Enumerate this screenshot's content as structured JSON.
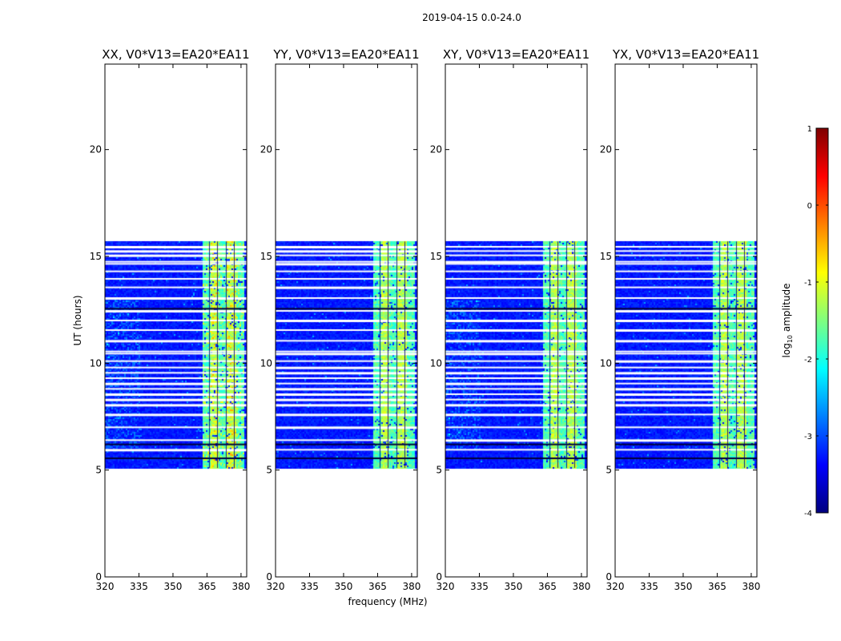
{
  "chart_data": {
    "type": "heatmap",
    "suptitle": "2019-04-15 0.0-24.0",
    "xlabel": "frequency (MHz)",
    "ylabel": "UT (hours)",
    "xlim": [
      320,
      382.5
    ],
    "ylim": [
      0,
      24
    ],
    "xticks": [
      320,
      335,
      350,
      365,
      380
    ],
    "yticks": [
      0,
      5,
      10,
      15,
      20
    ],
    "panels": [
      {
        "title": "XX, V0*V13=EA20*EA11"
      },
      {
        "title": "YY, V0*V13=EA20*EA11"
      },
      {
        "title": "XY, V0*V13=EA20*EA11"
      },
      {
        "title": "YX, V0*V13=EA20*EA11"
      }
    ],
    "data_time_range_hours": [
      5.1,
      15.7
    ],
    "rfi_band_mhz": [
      362.5,
      381
    ],
    "colorbar": {
      "label": "log10 amplitude",
      "label_base": "log",
      "label_sub": "10",
      "label_rest": " amplitude",
      "min": -4,
      "max": 1,
      "ticks": [
        1,
        0,
        -1,
        -2,
        -3,
        -4
      ],
      "colormap": "jet"
    },
    "flagged_rows_hours": [
      5.95,
      6.4,
      7.0,
      7.6,
      8.05,
      8.3,
      8.55,
      8.8,
      9.05,
      9.3,
      9.55,
      9.8,
      10.1,
      10.45,
      10.55,
      11.05,
      11.55,
      12.0,
      12.45,
      13.05,
      13.55,
      13.95,
      14.3,
      14.65,
      14.75,
      15.05,
      15.25,
      15.45
    ],
    "dark_rows_hours": [
      5.55,
      6.2,
      12.55
    ]
  }
}
